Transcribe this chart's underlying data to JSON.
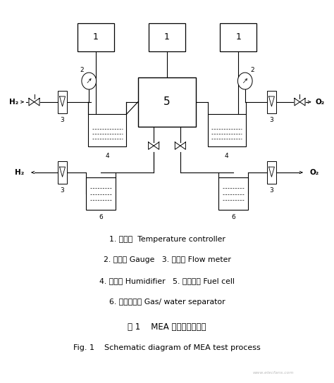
{
  "legend_lines": [
    "1. 温控仪  Temperature controller",
    "2. 压力表 Gauge   3. 流量计 Flow meter",
    "4. 加湿器 Humidifier   5. 燃料电池 Fuel cell",
    "6. 气水分离器 Gas/ water separator"
  ],
  "title_cn": "图 1    MEA 活化试验流程图",
  "title_en": "Fig. 1    Schematic diagram of MEA test process",
  "bg_color": "#ffffff"
}
